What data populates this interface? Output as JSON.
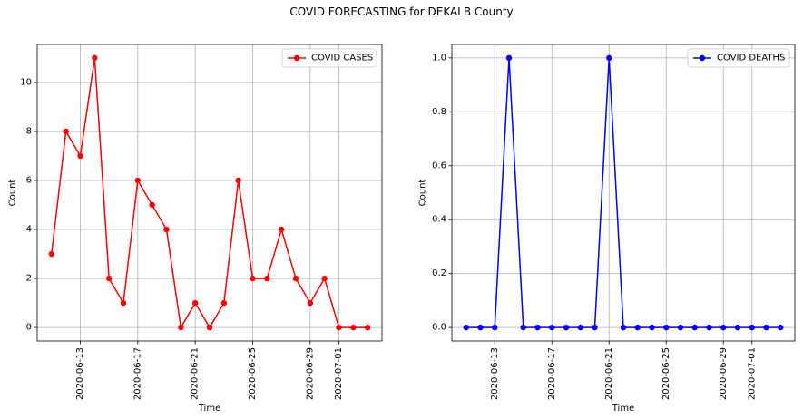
{
  "figure": {
    "title": "COVID FORECASTING for DEKALB County"
  },
  "chart_data": [
    {
      "type": "line",
      "title": "",
      "xlabel": "Time",
      "ylabel": "Count",
      "x": [
        "2020-06-11",
        "2020-06-12",
        "2020-06-13",
        "2020-06-14",
        "2020-06-15",
        "2020-06-16",
        "2020-06-17",
        "2020-06-18",
        "2020-06-19",
        "2020-06-20",
        "2020-06-21",
        "2020-06-22",
        "2020-06-23",
        "2020-06-24",
        "2020-06-25",
        "2020-06-26",
        "2020-06-27",
        "2020-06-28",
        "2020-06-29",
        "2020-06-30",
        "2020-07-01",
        "2020-07-02",
        "2020-07-03"
      ],
      "xlim": [
        "2020-06-10",
        "2020-07-04"
      ],
      "xticks": [
        "2020-06-13",
        "2020-06-17",
        "2020-06-21",
        "2020-06-25",
        "2020-06-29",
        "2020-07-01"
      ],
      "ylim": [
        -0.55,
        11.55
      ],
      "yticks": [
        0,
        2,
        4,
        6,
        8,
        10
      ],
      "grid": true,
      "legend_position": "upper right",
      "series": [
        {
          "name": "COVID CASES",
          "color": "#ff0000",
          "marker": "circle",
          "values": [
            3,
            8,
            7,
            11,
            2,
            1,
            6,
            5,
            4,
            0,
            1,
            0,
            1,
            6,
            2,
            2,
            4,
            2,
            1,
            2,
            0,
            0,
            0
          ]
        }
      ]
    },
    {
      "type": "line",
      "title": "",
      "xlabel": "Time",
      "ylabel": "Count",
      "x": [
        "2020-06-11",
        "2020-06-12",
        "2020-06-13",
        "2020-06-14",
        "2020-06-15",
        "2020-06-16",
        "2020-06-17",
        "2020-06-18",
        "2020-06-19",
        "2020-06-20",
        "2020-06-21",
        "2020-06-22",
        "2020-06-23",
        "2020-06-24",
        "2020-06-25",
        "2020-06-26",
        "2020-06-27",
        "2020-06-28",
        "2020-06-29",
        "2020-06-30",
        "2020-07-01",
        "2020-07-02",
        "2020-07-03"
      ],
      "xlim": [
        "2020-06-10",
        "2020-07-04"
      ],
      "xticks": [
        "2020-06-13",
        "2020-06-17",
        "2020-06-21",
        "2020-06-25",
        "2020-06-29",
        "2020-07-01"
      ],
      "ylim": [
        -0.05,
        1.05
      ],
      "yticks": [
        "0.0",
        "0.2",
        "0.4",
        "0.6",
        "0.8",
        "1.0"
      ],
      "grid": true,
      "legend_position": "upper right",
      "series": [
        {
          "name": "COVID DEATHS",
          "color": "#0000ff",
          "marker": "circle",
          "values": [
            0,
            0,
            0,
            1,
            0,
            0,
            0,
            0,
            0,
            0,
            1,
            0,
            0,
            0,
            0,
            0,
            0,
            0,
            0,
            0,
            0,
            0,
            0
          ]
        }
      ]
    }
  ]
}
